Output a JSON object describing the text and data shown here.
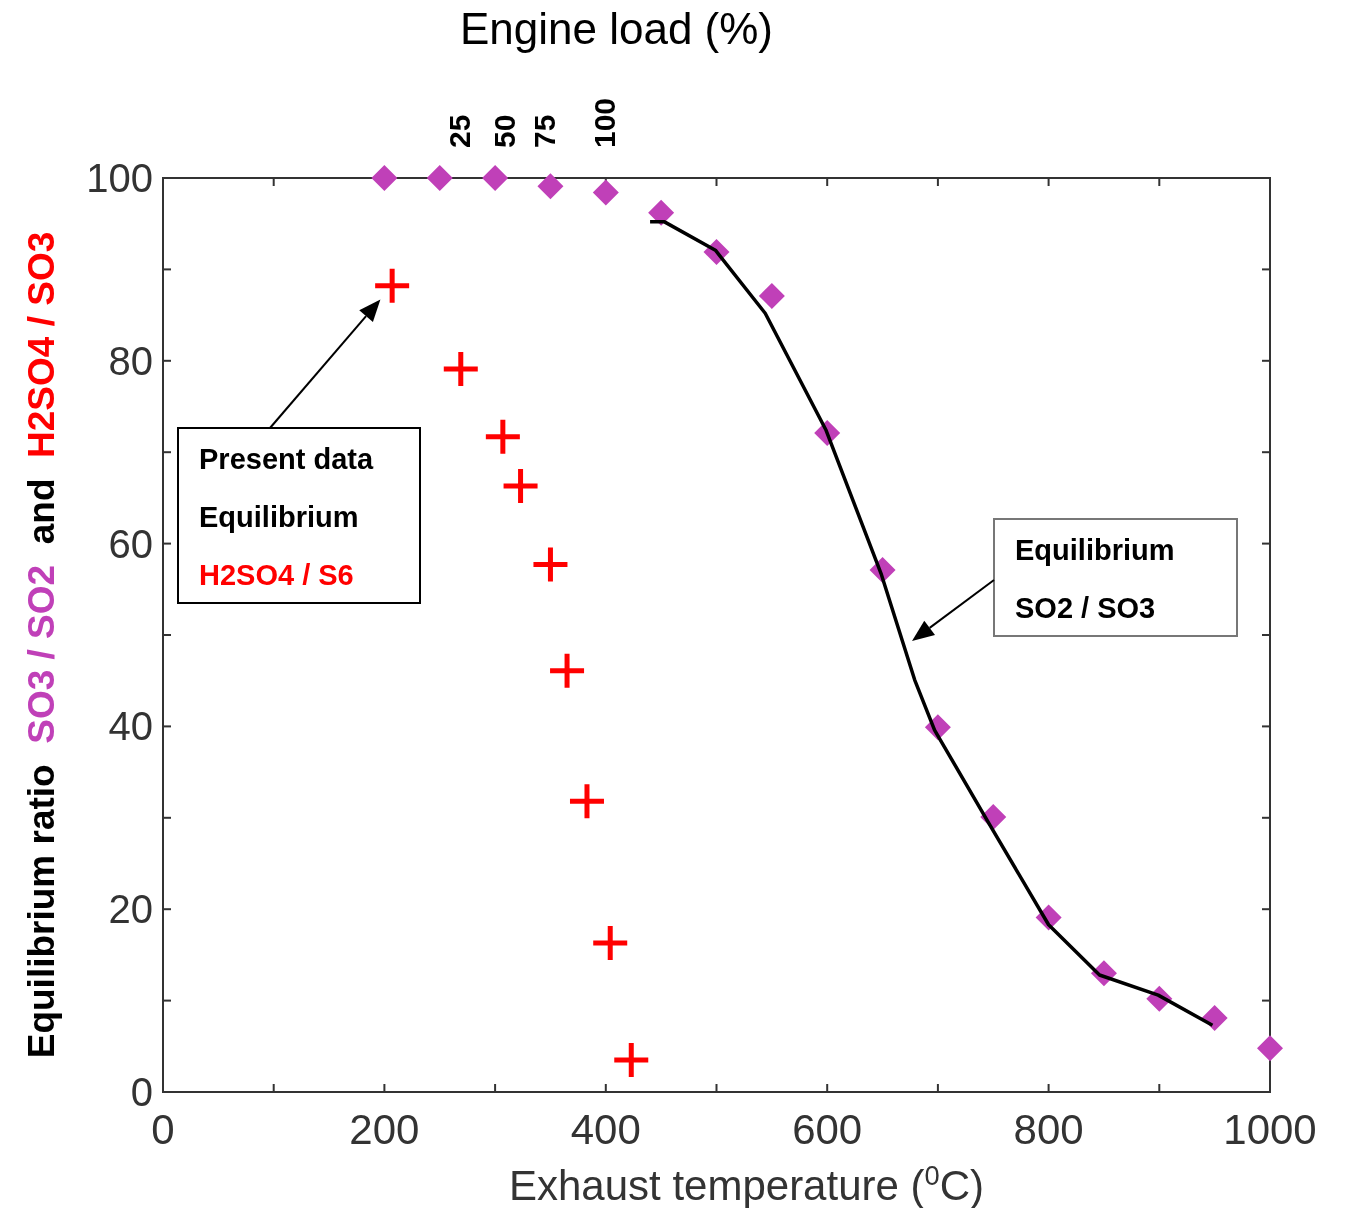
{
  "chart_data": {
    "type": "scatter",
    "title": "Engine load (%)",
    "xlabel": "Exhaust temperature ($^{0}$C)",
    "ylabel": "Equilibrium ratio  SO3 / SO2  and  H2SO4 / SO3",
    "xlim": [
      0,
      1000
    ],
    "ylim": [
      0,
      100
    ],
    "xticks": [
      0,
      {
        "value": 100,
        "label": null
      },
      200,
      {
        "value": 300,
        "label": null
      },
      400,
      {
        "value": 500,
        "label": null
      },
      600,
      {
        "value": 700,
        "label": null
      },
      800,
      {
        "value": 900,
        "label": null
      },
      1000
    ],
    "yticks": [
      0,
      {
        "value": 10,
        "label": null
      },
      20,
      {
        "value": 30,
        "label": null
      },
      40,
      {
        "value": 50,
        "label": null
      },
      60,
      {
        "value": 70,
        "label": null
      },
      80,
      {
        "value": 90,
        "label": null
      },
      100
    ],
    "grid": false,
    "series": [
      {
        "marker": "diamond",
        "color": "#c040b8",
        "x": [
          200,
          250,
          300,
          350,
          400,
          450,
          500,
          550,
          600,
          650,
          700,
          750,
          800,
          850,
          900,
          950,
          1000
        ],
        "values": [
          100,
          100,
          100,
          99.1,
          98.4,
          96.2,
          91.9,
          87.1,
          72.1,
          57.1,
          39.9,
          30.1,
          19.1,
          13.0,
          10.2,
          8.1,
          4.8
        ]
      },
      {
        "marker": "cross",
        "name": "H2SO4 / S6",
        "color": "#ff0000",
        "x": [
          207,
          269,
          307,
          323,
          350,
          365,
          383,
          404,
          423
        ],
        "values": [
          88.2,
          79.1,
          71.7,
          66.3,
          57.7,
          46.1,
          31.8,
          16.3,
          3.5
        ]
      },
      {
        "type": "line",
        "marker": "none",
        "line_style": "solid",
        "color": "#000000",
        "x": [
          440,
          453,
          499,
          544,
          599,
          649,
          679,
          697,
          747,
          800,
          846,
          899,
          948
        ],
        "values": [
          95.2,
          95.2,
          92.1,
          85.2,
          72.4,
          56.6,
          45.1,
          39.6,
          29.2,
          18.3,
          12.8,
          10.6,
          7.3
        ]
      }
    ],
    "annotations": [
      "Present data\nEquilibrium",
      "Equilibrium\nSO2 / SO3",
      "25",
      "50",
      "75",
      "100"
    ]
  }
}
